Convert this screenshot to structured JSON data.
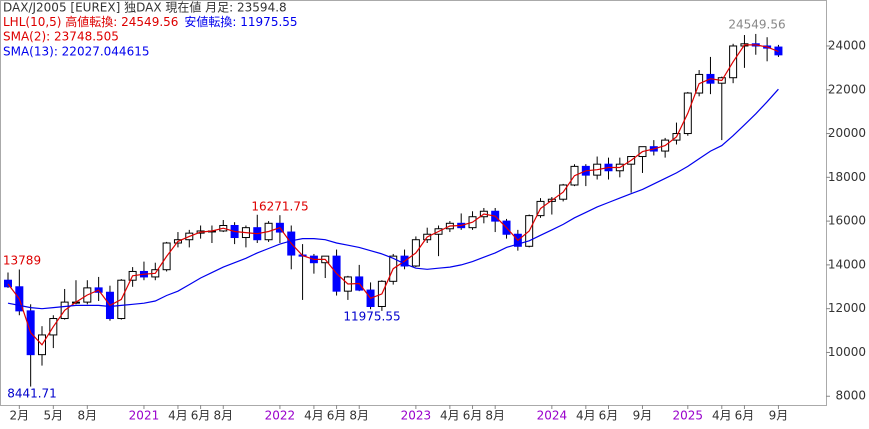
{
  "chart_data": {
    "type": "candlestick",
    "header": [
      "DAX/J2005 [EUREX] 独DAX 現在値 月足: 23594.8",
      "LHL(10,5) 高値転換: 24549.56",
      "安値転換: 11975.55",
      "SMA(2): 23748.505",
      "SMA(13): 22027.044615"
    ],
    "annotations": [
      "24549.56",
      "16271.75",
      "13789",
      "8441.71",
      "11975.55"
    ],
    "categories": [
      null,
      "2月",
      null,
      null,
      "5月",
      null,
      null,
      "8月",
      null,
      null,
      null,
      null,
      "2021",
      null,
      null,
      "4月",
      null,
      "6月",
      null,
      "8月",
      null,
      null,
      null,
      null,
      "2022",
      null,
      null,
      "4月",
      null,
      "6月",
      null,
      "8月",
      null,
      null,
      null,
      null,
      "2023",
      null,
      null,
      "4月",
      null,
      "6月",
      null,
      "8月",
      null,
      null,
      null,
      null,
      "2024",
      null,
      null,
      "4月",
      null,
      "6月",
      null,
      null,
      "9月",
      null,
      null,
      null,
      "2025",
      null,
      null,
      "4月",
      null,
      "6月",
      null,
      null,
      "9月"
    ],
    "open": [
      13300,
      13000,
      11900,
      9900,
      10800,
      11550,
      12300,
      12300,
      12950,
      12750,
      11550,
      13300,
      13700,
      13450,
      13780,
      15000,
      15150,
      15450,
      15550,
      15550,
      15800,
      15250,
      15700,
      15150,
      15900,
      15500,
      14450,
      14400,
      14100,
      14400,
      12800,
      13450,
      12850,
      12100,
      13250,
      14400,
      13950,
      15150,
      15400,
      15650,
      15900,
      15700,
      16200,
      16450,
      16000,
      15400,
      14850,
      16250,
      16900,
      17000,
      17650,
      18500,
      18100,
      18600,
      18300,
      18600,
      18950,
      19400,
      19200,
      19700,
      20000,
      21850,
      22700,
      22300,
      22550,
      24000,
      24100,
      24000,
      23950
    ],
    "high": [
      13650,
      13789,
      12200,
      11200,
      11700,
      12900,
      13300,
      13300,
      13450,
      13050,
      13350,
      13900,
      14150,
      14100,
      15050,
      15500,
      15600,
      15800,
      15800,
      16050,
      15950,
      15800,
      16290,
      16000,
      16271.75,
      15800,
      14950,
      14500,
      14400,
      14700,
      13500,
      14000,
      13200,
      13300,
      14500,
      14700,
      15300,
      15700,
      15800,
      16000,
      16350,
      16450,
      16600,
      16600,
      16100,
      15600,
      16300,
      17050,
      17100,
      17700,
      18600,
      18600,
      18950,
      18900,
      18900,
      18900,
      19400,
      19700,
      19800,
      20500,
      21900,
      22900,
      23500,
      22600,
      24100,
      24500,
      24549.56,
      24400,
      24050
    ],
    "low": [
      12950,
      11700,
      8441.71,
      9400,
      10200,
      11500,
      12200,
      12200,
      12350,
      11450,
      11500,
      13000,
      13300,
      13300,
      13700,
      14800,
      14800,
      15200,
      15000,
      15500,
      14950,
      14800,
      15000,
      15050,
      15000,
      13800,
      12400,
      13600,
      13400,
      12600,
      12400,
      12800,
      11975.55,
      11900,
      13100,
      13800,
      13900,
      15000,
      14400,
      15500,
      15600,
      15600,
      15900,
      15500,
      15200,
      14650,
      14800,
      16150,
      16300,
      16900,
      17600,
      17600,
      17900,
      17900,
      18000,
      17300,
      18200,
      19000,
      18900,
      19500,
      19900,
      21700,
      21800,
      19700,
      22300,
      23000,
      23600,
      23300,
      23500
    ],
    "close": [
      13000,
      11900,
      9900,
      10800,
      11550,
      12300,
      12300,
      12950,
      12750,
      11550,
      13300,
      13700,
      13450,
      13780,
      15000,
      15150,
      15450,
      15550,
      15550,
      15800,
      15250,
      15700,
      15150,
      15900,
      15500,
      14450,
      14400,
      14100,
      14400,
      12800,
      13450,
      12850,
      12100,
      13250,
      14400,
      13950,
      15150,
      15400,
      15650,
      15900,
      15700,
      16200,
      16450,
      16000,
      15400,
      14850,
      16250,
      16900,
      17000,
      17650,
      18500,
      18100,
      18600,
      18300,
      18600,
      18950,
      19400,
      19200,
      19700,
      20000,
      21850,
      22700,
      22300,
      22550,
      24000,
      24100,
      24000,
      23902.21,
      23594.8
    ],
    "up_color": "#ffffff",
    "down_color": "#0000ff",
    "lines": [
      {
        "color": "#dd0000",
        "values": [
          13125,
          12450,
          10900,
          10350,
          11175,
          11925,
          12300,
          12625,
          12850,
          12150,
          12425,
          13500,
          13575,
          13615,
          14390,
          15075,
          15300,
          15500,
          15550,
          15675,
          15525,
          15475,
          15425,
          15525,
          15700,
          14975,
          14425,
          14250,
          14250,
          13600,
          13125,
          13150,
          12475,
          12675,
          13825,
          14175,
          14550,
          15275,
          15525,
          15775,
          15800,
          15950,
          16325,
          16225,
          15700,
          15125,
          15550,
          16575,
          16950,
          17325,
          18075,
          18300,
          18350,
          18450,
          18450,
          18775,
          19175,
          19300,
          19450,
          19850,
          20925,
          22275,
          22500,
          22425,
          23275,
          24050,
          24050,
          23951.105,
          23748.505
        ]
      },
      {
        "color": "#0000ee",
        "values": [
          12250,
          12150,
          12050,
          12000,
          12050,
          12100,
          12150,
          12150,
          12150,
          12100,
          12150,
          12200,
          12250,
          12350,
          12600,
          12800,
          13100,
          13400,
          13650,
          13900,
          14100,
          14300,
          14550,
          14750,
          14950,
          15100,
          15200,
          15200,
          15150,
          15000,
          14900,
          14800,
          14650,
          14500,
          14300,
          14050,
          13850,
          13800,
          13850,
          13900,
          14000,
          14150,
          14350,
          14550,
          14800,
          14950,
          15100,
          15350,
          15600,
          15850,
          16150,
          16400,
          16650,
          16850,
          17050,
          17250,
          17450,
          17700,
          17950,
          18200,
          18500,
          18850,
          19200,
          19450,
          19900,
          20400,
          20900,
          21450,
          22027.044615
        ]
      }
    ],
    "ylim": [
      7600,
      26100
    ],
    "yticks": [
      8000,
      10000,
      12000,
      14000,
      16000,
      18000,
      20000,
      22000,
      24000
    ]
  }
}
